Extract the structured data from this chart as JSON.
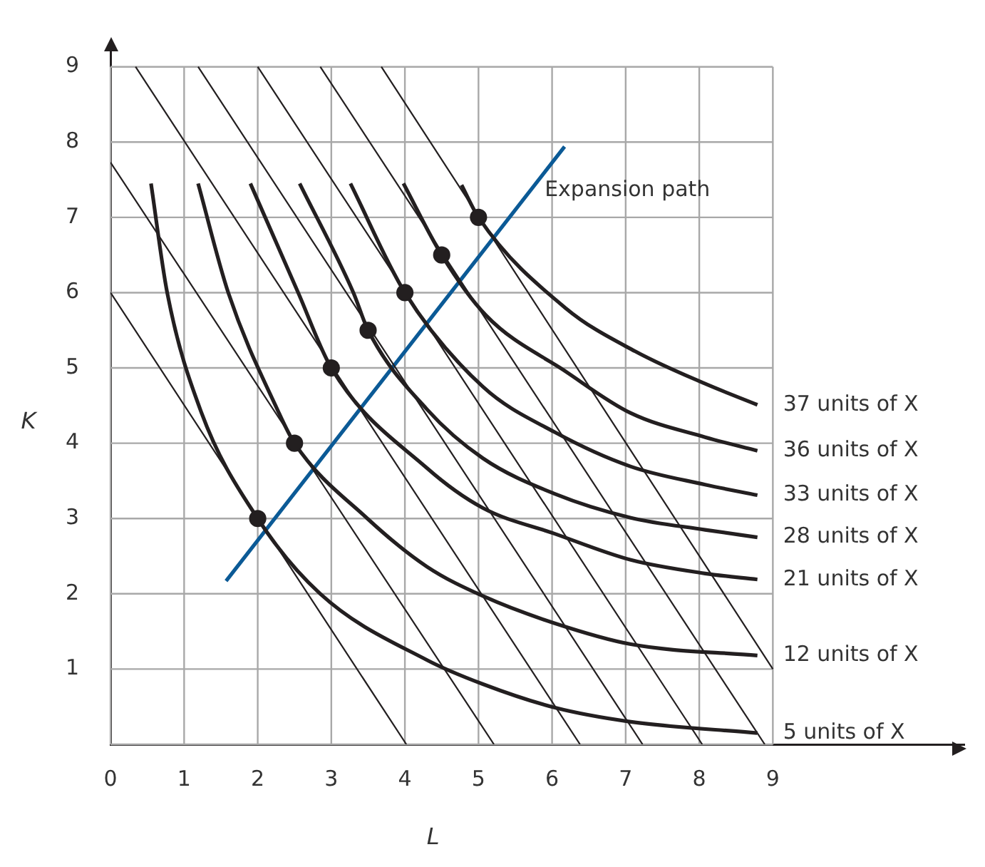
{
  "chart_data": {
    "type": "line",
    "xlabel": "L",
    "ylabel": "K",
    "xlim": [
      0,
      11.6
    ],
    "ylim": [
      0,
      9.3
    ],
    "xticks": [
      0,
      1,
      2,
      3,
      4,
      5,
      6,
      7,
      8,
      9
    ],
    "yticks": [
      {
        "value": 0,
        "label": null
      },
      1,
      2,
      3,
      4,
      5,
      6,
      7,
      8,
      9
    ],
    "grid": true,
    "legend": false,
    "marker": "none",
    "line_style": "solid",
    "series": [
      {
        "name": "5 units of X",
        "color": "#231f20",
        "x": [
          0.55,
          0.77,
          1.23,
          2,
          2.85,
          4.3,
          5.06,
          6.03,
          7.07,
          8.79
        ],
        "values": [
          7.45,
          6,
          4.42,
          3,
          2,
          1.12,
          0.8,
          0.49,
          0.3,
          0.15
        ]
      },
      {
        "name": "12 units of X",
        "color": "#231f20",
        "x": [
          1.19,
          1.6,
          2.28,
          2.5,
          3.49,
          4.3,
          5.06,
          6.03,
          7.07,
          8.79
        ],
        "values": [
          7.45,
          6,
          4.42,
          4,
          3,
          2.36,
          1.97,
          1.61,
          1.33,
          1.18
        ]
      },
      {
        "name": "21 units of X",
        "color": "#231f20",
        "x": [
          1.9,
          2.55,
          3,
          4.3,
          5.06,
          6.03,
          7.07,
          8.08,
          8.79
        ],
        "values": [
          7.45,
          6,
          5,
          3.67,
          3.14,
          2.8,
          2.45,
          2.27,
          2.19
        ]
      },
      {
        "name": "28 units of X",
        "color": "#231f20",
        "x": [
          2.57,
          3.3,
          3.5,
          4.3,
          5.06,
          6.03,
          7.07,
          8.08,
          8.79
        ],
        "values": [
          7.45,
          6,
          5.5,
          4.45,
          3.8,
          3.33,
          3.01,
          2.85,
          2.75
        ]
      },
      {
        "name": "33 units of X",
        "color": "#231f20",
        "x": [
          3.26,
          4,
          5.06,
          6.03,
          7.07,
          8.08,
          8.79
        ],
        "values": [
          7.45,
          6,
          4.75,
          4.15,
          3.69,
          3.45,
          3.31
        ]
      },
      {
        "name": "36 units of X",
        "color": "#231f20",
        "x": [
          3.98,
          4.5,
          5.1,
          6.19,
          7.07,
          8.08,
          8.79
        ],
        "values": [
          7.45,
          6.5,
          5.7,
          4.95,
          4.4,
          4.08,
          3.9
        ]
      },
      {
        "name": "37 units of X",
        "color": "#231f20",
        "x": [
          4.77,
          5,
          6.19,
          7.13,
          8.08,
          8.79
        ],
        "values": [
          7.43,
          7,
          5.79,
          5.22,
          4.79,
          4.51
        ]
      },
      {
        "color": "#231f20",
        "x": [
          0,
          4.02
        ],
        "values": [
          6,
          0
        ]
      },
      {
        "color": "#231f20",
        "x": [
          0,
          5.21
        ],
        "values": [
          7.73,
          0
        ]
      },
      {
        "color": "#231f20",
        "x": [
          0.34,
          6.38
        ],
        "values": [
          9,
          0
        ]
      },
      {
        "color": "#231f20",
        "x": [
          1.19,
          7.23
        ],
        "values": [
          9,
          0
        ]
      },
      {
        "color": "#231f20",
        "x": [
          2,
          8.04
        ],
        "values": [
          9,
          0
        ]
      },
      {
        "color": "#231f20",
        "x": [
          2.85,
          8.89
        ],
        "values": [
          9,
          0
        ]
      },
      {
        "color": "#231f20",
        "x": [
          3.68,
          9
        ],
        "values": [
          9,
          1
        ]
      },
      {
        "name": "Expansion path",
        "color": "#0b5a96",
        "x": [
          1.57,
          6.17
        ],
        "values": [
          2.17,
          7.94
        ]
      },
      {
        "type": "scatter",
        "marker": "circle",
        "color": "#231f20",
        "x": [
          2,
          2.5,
          3,
          3.5,
          4,
          4.5,
          5
        ],
        "values": [
          3,
          4,
          5,
          5.5,
          6,
          6.5,
          7
        ]
      }
    ]
  }
}
